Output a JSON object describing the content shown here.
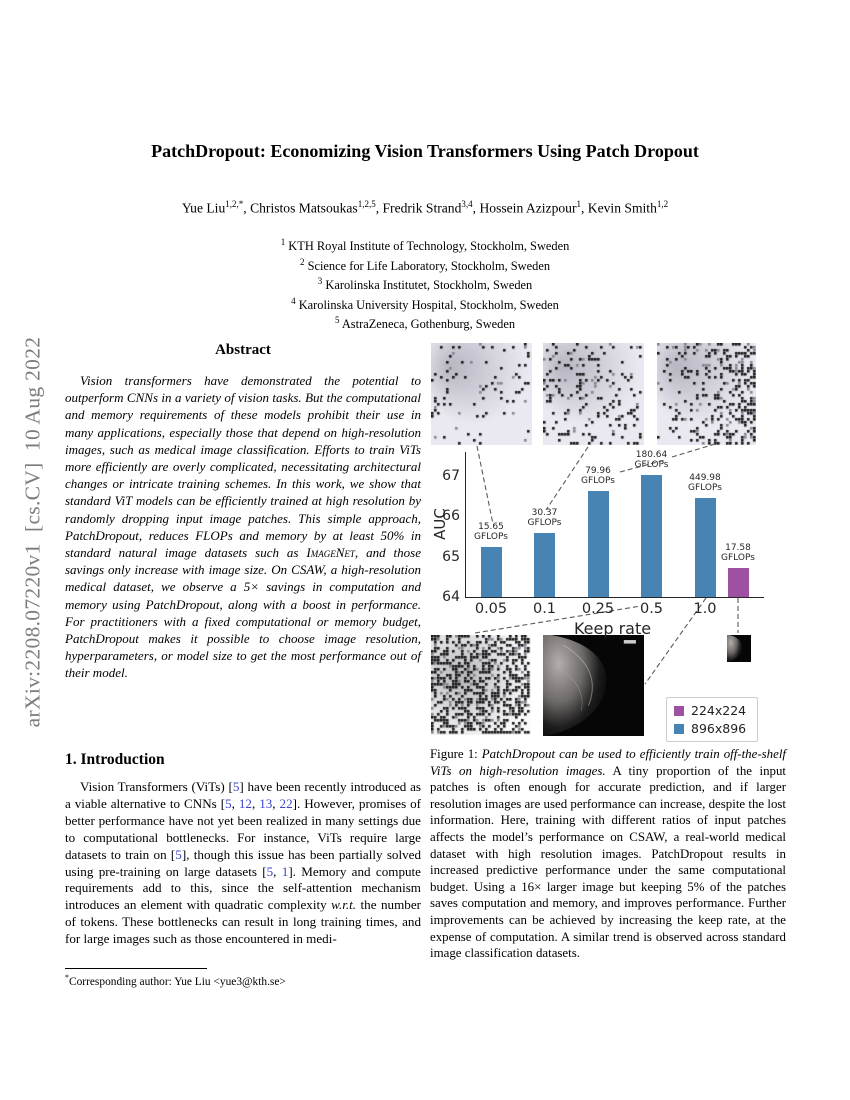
{
  "arxiv_banner": {
    "text": "arXiv:2208.07220v1  [cs.CV]  10 Aug 2022"
  },
  "header": {
    "title": "PatchDropout: Economizing Vision Transformers Using Patch Dropout",
    "authors": [
      {
        "name": "Yue Liu",
        "sup": "1,2,*"
      },
      {
        "name": "Christos Matsoukas",
        "sup": "1,2,5"
      },
      {
        "name": "Fredrik Strand",
        "sup": "3,4"
      },
      {
        "name": "Hossein Azizpour",
        "sup": "1"
      },
      {
        "name": "Kevin Smith",
        "sup": "1,2"
      }
    ],
    "affiliations": [
      {
        "sup": "1",
        "text": "KTH Royal Institute of Technology, Stockholm, Sweden"
      },
      {
        "sup": "2",
        "text": "Science for Life Laboratory, Stockholm, Sweden"
      },
      {
        "sup": "3",
        "text": "Karolinska Institutet, Stockholm, Sweden"
      },
      {
        "sup": "4",
        "text": "Karolinska University Hospital, Stockholm, Sweden"
      },
      {
        "sup": "5",
        "text": "AstraZeneca, Gothenburg, Sweden"
      }
    ]
  },
  "abstract": {
    "heading": "Abstract",
    "segments": [
      {
        "t": "Vision transformers have demonstrated the potential to outperform CNNs in a variety of vision tasks. But the computational and memory requirements of these models prohibit their use in many applications, especially those that depend on high-resolution images, such as medical image classification. Efforts to train ViTs more efficiently are overly complicated, necessitating architectural changes or intricate training schemes. In this work, we show that standard ViT models can be efficiently trained at high resolution by randomly dropping input image patches. This simple approach, PatchDropout, reduces FLOPs and memory by at least 50% in standard natural image datasets such as "
      },
      {
        "t": "ImageNet",
        "sc": 1
      },
      {
        "t": ", and those savings only increase with image size. On CSAW, a high-resolution medical dataset, we observe a 5× savings in computation and memory using PatchDropout, along with a boost in performance. For practitioners with a fixed computational or memory budget, PatchDropout makes it possible to choose image resolution, hyperparameters, or model size to get the most performance out of their model."
      }
    ]
  },
  "introduction": {
    "heading": "1. Introduction",
    "segments": [
      {
        "t": "Vision Transformers (ViTs) ["
      },
      {
        "t": "5",
        "c": 1
      },
      {
        "t": "] have been recently introduced as a viable alternative to CNNs ["
      },
      {
        "t": "5",
        "c": 1
      },
      {
        "t": ", "
      },
      {
        "t": "12",
        "c": 1
      },
      {
        "t": ", "
      },
      {
        "t": "13",
        "c": 1
      },
      {
        "t": ", "
      },
      {
        "t": "22",
        "c": 1
      },
      {
        "t": "]. However, promises of better performance have not yet been realized in many settings due to computational bottlenecks. For instance, ViTs require large datasets to train on ["
      },
      {
        "t": "5",
        "c": 1
      },
      {
        "t": "], though this issue has been partially solved using pre-training on large datasets ["
      },
      {
        "t": "5",
        "c": 1
      },
      {
        "t": ", "
      },
      {
        "t": "1",
        "c": 1
      },
      {
        "t": "]. Memory and compute requirements add to this, since the self-attention mechanism introduces an element with quadratic complexity "
      },
      {
        "t": "w.r.t.",
        "i": 1
      },
      {
        "t": " the number of tokens. These bottlenecks can result in long training times, and for large images such as those encountered in medi-"
      }
    ]
  },
  "footnote": {
    "marker": "*",
    "text": "Corresponding author: Yue Liu <yue3@kth.se>"
  },
  "figure": {
    "caption_segments": [
      {
        "t": "Figure 1: "
      },
      {
        "t": "PatchDropout can be used to efficiently train off-the-shelf ViTs on high-resolution images.",
        "i": 1
      },
      {
        "t": " A tiny proportion of the input patches is often enough for accurate prediction, and if larger resolution images are used performance can increase, despite the lost information. Here, training with different ratios of input patches affects the model’s performance on CSAW, a real-world medical dataset with high resolution images. PatchDropout results in increased predictive performance under the same computational budget. Using a 16× larger image but keeping 5% of the patches saves computation and memory, and improves performance. Further improvements can be achieved by increasing the keep rate, at the expense of computation. A similar trend is observed across standard image classification datasets."
      }
    ]
  },
  "chart_data": {
    "type": "bar",
    "title": "",
    "xlabel": "Keep rate",
    "ylabel": "AUC",
    "ylim": [
      64,
      67.6
    ],
    "yticks": [
      64,
      65,
      66,
      67
    ],
    "categories": [
      "0.05",
      "0.1",
      "0.25",
      "0.5",
      "1.0"
    ],
    "gflops_unit": "GFLOPs",
    "grid": false,
    "legend_position": "lower right",
    "series_colors": {
      "896x896": "#4784b4",
      "224x224": "#9e50a2"
    },
    "bars": [
      {
        "category": "0.05",
        "slot": 0,
        "group_offset": 0,
        "series": "896x896",
        "auc": 65.25,
        "gflops": "15.65"
      },
      {
        "category": "0.1",
        "slot": 1,
        "group_offset": 0,
        "series": "896x896",
        "auc": 65.6,
        "gflops": "30.37"
      },
      {
        "category": "0.25",
        "slot": 2,
        "group_offset": 0,
        "series": "896x896",
        "auc": 66.62,
        "gflops": "79.96"
      },
      {
        "category": "0.5",
        "slot": 3,
        "group_offset": 0,
        "series": "896x896",
        "auc": 67.02,
        "gflops": "180.64"
      },
      {
        "category": "1.0",
        "slot": 4,
        "group_offset": 0,
        "series": "896x896",
        "auc": 66.47,
        "gflops": "449.98"
      },
      {
        "category": "1.0",
        "slot": 4,
        "group_offset": 1,
        "series": "224x224",
        "auc": 64.72,
        "gflops": "17.58"
      }
    ],
    "legend": [
      {
        "label": "224x224",
        "color": "#9e50a2"
      },
      {
        "label": "896x896",
        "color": "#4784b4"
      }
    ]
  }
}
